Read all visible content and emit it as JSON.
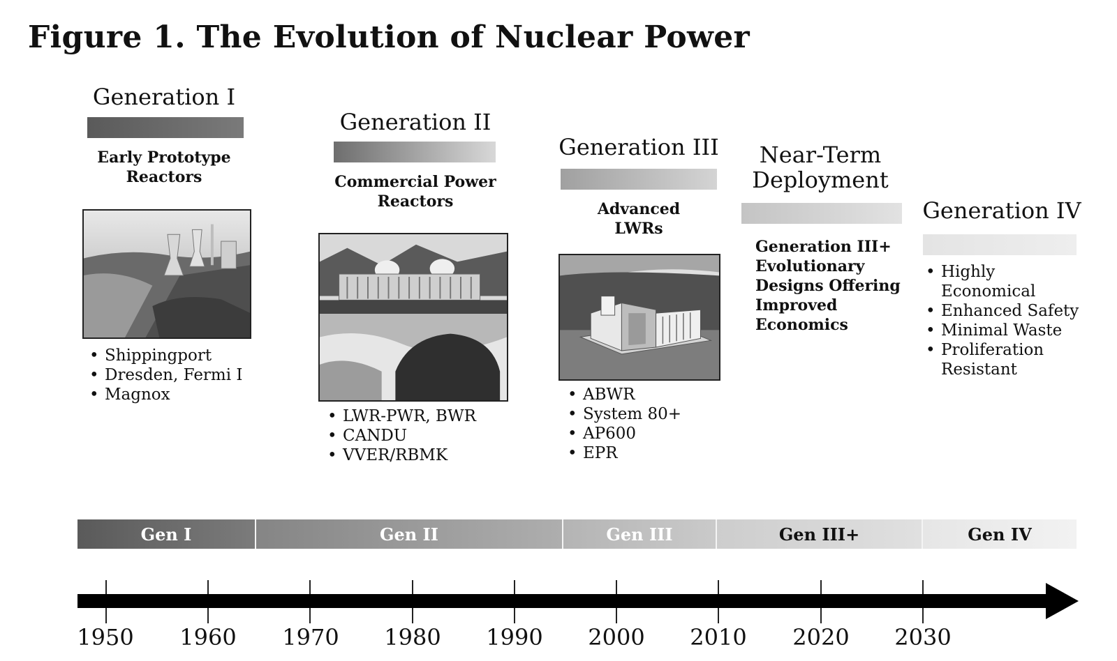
{
  "figure": {
    "title": "Figure 1. The Evolution of Nuclear Power"
  },
  "generations": [
    {
      "title": "Generation I",
      "subtitle_lines": [
        "Early Prototype",
        "Reactors"
      ],
      "photo_icon": "nuclear-plant-cooling-towers-photo",
      "items": [
        [
          "Shippingport"
        ],
        [
          "Dresden, Fermi I"
        ],
        [
          "Magnox"
        ]
      ],
      "bar_colors": [
        "#5a5a5a",
        "#7a7a7a"
      ]
    },
    {
      "title": "Generation II",
      "subtitle_lines": [
        "Commercial Power",
        "Reactors"
      ],
      "photo_icon": "riverside-power-plant-photo",
      "items": [
        [
          "LWR-PWR, BWR"
        ],
        [
          "CANDU"
        ],
        [
          "VVER/RBMK"
        ]
      ],
      "bar_colors": [
        "#6e6e6e",
        "#d8d8d8"
      ]
    },
    {
      "title": "Generation III",
      "subtitle_lines": [
        "Advanced",
        "LWRs"
      ],
      "photo_icon": "reactor-cutaway-diagram-photo",
      "items": [
        [
          "ABWR"
        ],
        [
          "System 80+"
        ],
        [
          "AP600"
        ],
        [
          "EPR"
        ]
      ],
      "bar_colors": [
        "#a0a0a0",
        "#d4d4d4"
      ]
    },
    {
      "title_lines": [
        "Near-Term",
        "Deployment"
      ],
      "subtitle_lines": [
        "Generation III+",
        "Evolutionary",
        "Designs Offering",
        "Improved",
        "Economics"
      ],
      "bar_colors": [
        "#c4c4c4",
        "#e2e2e2"
      ]
    },
    {
      "title": "Generation IV",
      "items": [
        [
          "Highly",
          "Economical"
        ],
        [
          "Enhanced Safety"
        ],
        [
          "Minimal Waste"
        ],
        [
          "Proliferation",
          "Resistant"
        ]
      ],
      "bar_colors": [
        "#e4e4e4",
        "#eeeeee"
      ]
    }
  ],
  "timeline": {
    "segments": [
      {
        "label": "Gen I",
        "text_color": "#ffffff",
        "colors": [
          "#5a5a5a",
          "#7b7b7b"
        ]
      },
      {
        "label": "Gen II",
        "text_color": "#ffffff",
        "colors": [
          "#858585",
          "#aeaeae"
        ]
      },
      {
        "label": "Gen III",
        "text_color": "#ffffff",
        "colors": [
          "#b4b4b4",
          "#cacaca"
        ]
      },
      {
        "label": "Gen III+",
        "text_color": "#111111",
        "colors": [
          "#cdcdcd",
          "#e0e0e0"
        ]
      },
      {
        "label": "Gen IV",
        "text_color": "#111111",
        "colors": [
          "#e6e6e6",
          "#f2f2f2"
        ]
      }
    ],
    "years": [
      "1950",
      "1960",
      "1970",
      "1980",
      "1990",
      "2000",
      "2010",
      "2020",
      "2030"
    ]
  }
}
